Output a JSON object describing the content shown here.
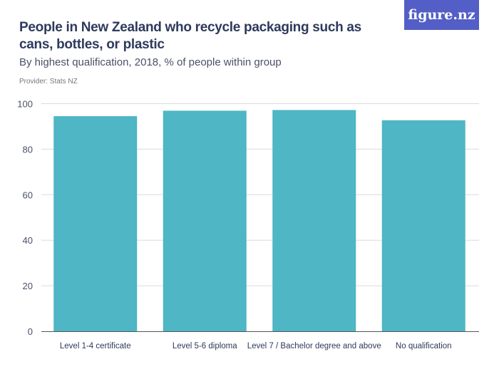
{
  "title": "People in New Zealand who recycle packaging such as cans, bottles, or plastic",
  "subtitle": "By highest qualification, 2018, % of people within group",
  "provider": "Provider: Stats NZ",
  "logo": "figure.nz",
  "colors": {
    "bar": "#4eb6c4",
    "logo_bg": "#535fc6"
  },
  "chart_data": {
    "type": "bar",
    "categories": [
      "Level 1-4 certificate",
      "Level 5-6 diploma",
      "Level 7 / Bachelor degree and above",
      "No qualification"
    ],
    "values": [
      94.5,
      96.9,
      97.2,
      92.7
    ],
    "ylim": [
      0,
      100
    ],
    "yticks": [
      0,
      20,
      40,
      60,
      80,
      100
    ],
    "grid": true
  }
}
